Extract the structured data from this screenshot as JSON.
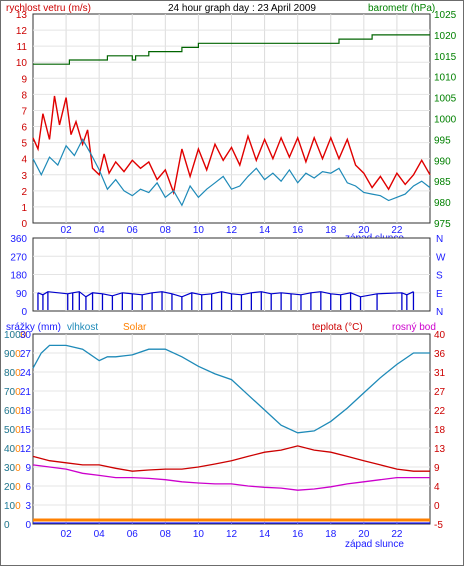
{
  "chart_data": [
    {
      "type": "line",
      "title": "24 hour graph day : 23 April 2009",
      "left_axis_label": "rychlost vetru (m/s)",
      "right_axis_label": "barometr (hPa)",
      "x_ticks": [
        "02",
        "04",
        "06",
        "08",
        "10",
        "12",
        "14",
        "16",
        "18",
        "20",
        "22"
      ],
      "x_annotation": "západ slunce",
      "ylim_left": [
        0,
        13
      ],
      "ylim_right": [
        975,
        1025
      ],
      "y_ticks_left": [
        "13",
        "12",
        "11",
        "10",
        "9",
        "8",
        "7",
        "6",
        "5",
        "4",
        "3",
        "2",
        "1",
        "0"
      ],
      "y_ticks_right": [
        "1025",
        "1020",
        "1015",
        "1010",
        "1005",
        "1000",
        "995",
        "990",
        "985",
        "980",
        "975"
      ],
      "colors": {
        "gust": "#e00000",
        "avg": "#1e8ab8",
        "baro": "#006400",
        "axis": "#1a1aff",
        "right_axis": "#008000",
        "title": "#000000",
        "left_title": "#cc0000"
      },
      "series": [
        {
          "name": "",
          "axis": "left",
          "color": "#e00000",
          "x": [
            0,
            0.3,
            0.6,
            1,
            1.3,
            1.6,
            2,
            2.3,
            2.6,
            3,
            3.3,
            3.6,
            4,
            4.3,
            4.6,
            5,
            5.5,
            6,
            6.5,
            7,
            7.5,
            8,
            8.5,
            9,
            9.5,
            10,
            10.5,
            11,
            11.5,
            12,
            12.5,
            13,
            13.5,
            14,
            14.5,
            15,
            15.5,
            16,
            16.5,
            17,
            17.5,
            18,
            18.5,
            19,
            19.5,
            20,
            20.5,
            21,
            21.5,
            22,
            22.5,
            23,
            23.5,
            24
          ],
          "values": [
            5.3,
            4.6,
            6.8,
            5.2,
            7.9,
            6.1,
            7.8,
            5.5,
            6.3,
            4.9,
            5.8,
            3.4,
            3.0,
            4.3,
            3.1,
            3.8,
            3.2,
            3.9,
            3.4,
            3.8,
            2.7,
            3.3,
            1.9,
            4.6,
            2.9,
            4.6,
            3.3,
            4.9,
            3.9,
            4.7,
            3.6,
            5.4,
            3.9,
            5.2,
            4.0,
            5.3,
            4.1,
            5.3,
            3.8,
            5.3,
            4.0,
            5.3,
            4.0,
            5.2,
            3.6,
            3.1,
            2.2,
            2.9,
            2.1,
            3.1,
            2.4,
            3.0,
            3.9,
            3.0
          ]
        },
        {
          "name": "",
          "axis": "left",
          "color": "#1e8ab8",
          "x": [
            0,
            0.5,
            1,
            1.5,
            2,
            2.5,
            3,
            3.5,
            4,
            4.5,
            5,
            5.5,
            6,
            6.5,
            7,
            7.5,
            8,
            8.5,
            9,
            9.5,
            10,
            10.5,
            11,
            11.5,
            12,
            12.5,
            13,
            13.5,
            14,
            14.5,
            15,
            15.5,
            16,
            16.5,
            17,
            17.5,
            18,
            18.5,
            19,
            19.5,
            20,
            20.5,
            21,
            21.5,
            22,
            22.5,
            23,
            23.5,
            24
          ],
          "values": [
            4.0,
            3.0,
            4.1,
            3.6,
            4.8,
            4.2,
            5.2,
            4.3,
            3.3,
            2.1,
            2.7,
            2.0,
            1.7,
            2.1,
            1.9,
            2.5,
            1.6,
            2.0,
            1.1,
            2.3,
            1.6,
            2.1,
            2.5,
            2.9,
            2.1,
            2.3,
            2.9,
            3.4,
            2.7,
            3.1,
            2.6,
            3.3,
            2.5,
            3.1,
            2.8,
            3.2,
            3.1,
            3.4,
            2.5,
            2.3,
            1.9,
            1.8,
            1.7,
            1.4,
            1.6,
            1.8,
            2.3,
            2.6,
            2.2
          ]
        },
        {
          "name": "",
          "axis": "right",
          "color": "#006400",
          "x": [
            0,
            2.2,
            2.2,
            4.5,
            4.5,
            6,
            6,
            6.2,
            6.2,
            7,
            7,
            9,
            9,
            10,
            10,
            18.5,
            18.5,
            20.5,
            20.5,
            24
          ],
          "values": [
            1013,
            1013,
            1014,
            1014,
            1015,
            1015,
            1014,
            1014,
            1015,
            1015,
            1016,
            1016,
            1017,
            1017,
            1018,
            1018,
            1019,
            1019,
            1020,
            1020
          ]
        }
      ]
    },
    {
      "type": "scatter",
      "left_axis_label": "",
      "y_ticks_left": [
        "360",
        "270",
        "180",
        "90",
        "0"
      ],
      "y_ticks_right": [
        "N",
        "W",
        "S",
        "E",
        "N"
      ],
      "ylim": [
        0,
        360
      ],
      "x_ticks": [
        "02",
        "04",
        "06",
        "08",
        "10",
        "12",
        "14",
        "16",
        "18",
        "20",
        "22"
      ],
      "series": [
        {
          "name": "",
          "color": "#0000cc",
          "x": [
            0.3,
            0.6,
            0.9,
            2.1,
            2.4,
            2.8,
            3.2,
            3.6,
            4.2,
            4.8,
            5.4,
            6.0,
            6.6,
            7.2,
            7.8,
            8.4,
            9.0,
            9.6,
            10.2,
            10.8,
            11.4,
            12.0,
            12.6,
            13.2,
            13.8,
            14.4,
            15.0,
            15.6,
            16.2,
            16.8,
            17.4,
            18.0,
            18.6,
            19.2,
            19.8,
            20.8,
            22.3,
            22.6,
            23.0
          ],
          "values": [
            90,
            80,
            95,
            85,
            90,
            95,
            70,
            90,
            85,
            75,
            90,
            85,
            80,
            90,
            95,
            85,
            70,
            90,
            80,
            85,
            95,
            85,
            80,
            90,
            95,
            85,
            90,
            85,
            80,
            90,
            95,
            85,
            80,
            90,
            70,
            85,
            90,
            80,
            95
          ]
        }
      ]
    },
    {
      "type": "line",
      "left_axis_labels": [
        "srážky (mm)",
        "vlhkost",
        "Solar"
      ],
      "right_axis_labels": [
        "teplota (°C)",
        "rosný bod"
      ],
      "x_annotation": "západ slunce",
      "x_ticks": [
        "02",
        "04",
        "06",
        "08",
        "10",
        "12",
        "14",
        "16",
        "18",
        "20",
        "22"
      ],
      "y_ticks_solar": [
        "1000",
        "900",
        "800",
        "700",
        "600",
        "500",
        "400",
        "300",
        "200",
        "100",
        "0"
      ],
      "y_ticks_humidity": [
        "100",
        "90",
        "80",
        "70",
        "60",
        "50",
        "40",
        "30",
        "20",
        "10",
        "0"
      ],
      "y_ticks_rain": [
        "30",
        "27",
        "24",
        "21",
        "18",
        "15",
        "12",
        "9",
        "6",
        "3",
        "0"
      ],
      "y_ticks_temp": [
        "40",
        "36",
        "31",
        "27",
        "22",
        "18",
        "13",
        "9",
        "4",
        "0",
        "-5"
      ],
      "ylim_humidity": [
        0,
        100
      ],
      "ylim_temp": [
        -5,
        40
      ],
      "colors": {
        "humidity": "#1e8ab8",
        "temp": "#cc0000",
        "dew": "#cc00cc",
        "solar": "#ff8000",
        "rain": "#1a1aff"
      },
      "series": [
        {
          "name": "vlhkost",
          "axis": "humidity",
          "color": "#1e8ab8",
          "x": [
            0,
            0.5,
            1,
            2,
            3,
            4,
            4.5,
            5,
            6,
            7,
            8,
            9,
            10,
            11,
            12,
            13,
            14,
            15,
            16,
            17,
            18,
            19,
            20,
            21,
            22,
            23,
            24
          ],
          "values": [
            82,
            90,
            94,
            94,
            92,
            86,
            88,
            88,
            89,
            92,
            92,
            88,
            83,
            79,
            76,
            68,
            60,
            52,
            48,
            49,
            54,
            61,
            69,
            77,
            84,
            90,
            90
          ]
        },
        {
          "name": "teplota (°C)",
          "axis": "temp",
          "color": "#cc0000",
          "x": [
            0,
            1,
            2,
            3,
            4,
            5,
            6,
            7,
            8,
            9,
            10,
            11,
            12,
            13,
            14,
            15,
            16,
            17,
            18,
            19,
            20,
            21,
            22,
            23,
            24
          ],
          "values": [
            11,
            10,
            9.5,
            9,
            9,
            8.2,
            7.5,
            7.8,
            8,
            8,
            8.5,
            9.2,
            10,
            11,
            12,
            12.5,
            13.5,
            12.5,
            12,
            11,
            10,
            9,
            8,
            7.5,
            7.5
          ]
        },
        {
          "name": "rosný bod",
          "axis": "temp",
          "color": "#cc00cc",
          "x": [
            0,
            1,
            2,
            3,
            4,
            5,
            6,
            7,
            8,
            9,
            10,
            11,
            12,
            13,
            14,
            15,
            16,
            17,
            18,
            19,
            20,
            21,
            22,
            23,
            24
          ],
          "values": [
            9,
            8.5,
            8,
            7,
            6.5,
            6,
            6,
            5.8,
            5.5,
            5,
            4.7,
            4.5,
            4.5,
            4,
            3.7,
            3.5,
            3,
            3.3,
            3.8,
            4.5,
            5,
            5.5,
            6,
            6,
            6
          ]
        },
        {
          "name": "Solar",
          "axis": "solar",
          "color": "#ff8000",
          "x": [
            0,
            24
          ],
          "values": [
            0,
            0
          ]
        }
      ]
    }
  ]
}
